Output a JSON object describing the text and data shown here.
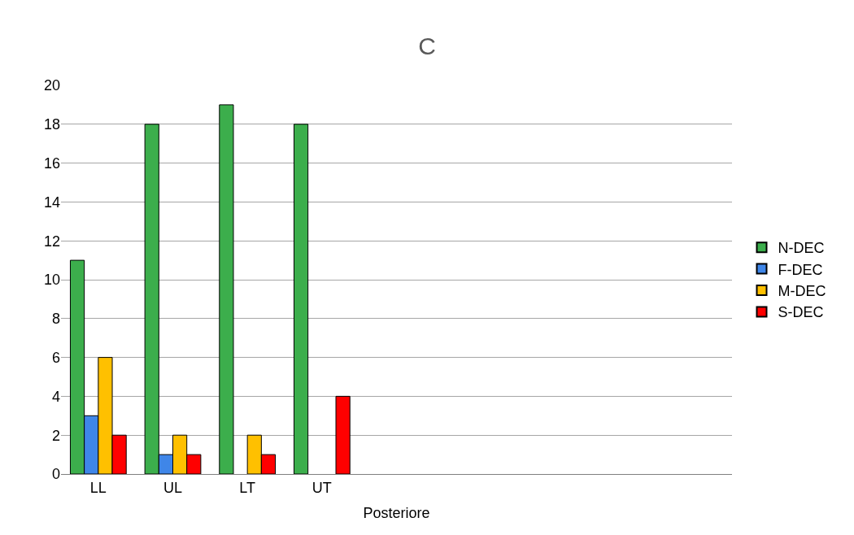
{
  "chart_data": {
    "type": "bar",
    "title": "C",
    "xlabel": "Posteriore",
    "categories": [
      "LL",
      "UL",
      "LT",
      "UT",
      null,
      null,
      null,
      null,
      null
    ],
    "series": [
      {
        "name": "N-DEC",
        "color": "#3cae4c",
        "values": [
          11,
          18,
          19,
          18,
          null,
          null,
          null,
          null,
          null
        ]
      },
      {
        "name": "F-DEC",
        "color": "#3f86e8",
        "values": [
          3,
          1,
          null,
          null,
          null,
          null,
          null,
          null,
          null
        ]
      },
      {
        "name": "M-DEC",
        "color": "#ffc000",
        "values": [
          6,
          2,
          2,
          null,
          null,
          null,
          null,
          null,
          null
        ]
      },
      {
        "name": "S-DEC",
        "color": "#ff0000",
        "values": [
          2,
          1,
          1,
          4,
          null,
          null,
          null,
          null,
          null
        ]
      }
    ],
    "ylim": [
      0,
      20
    ],
    "yticks": [
      0,
      2,
      4,
      6,
      8,
      10,
      12,
      14,
      16,
      18,
      20
    ],
    "grid": "y",
    "legend": "right"
  }
}
